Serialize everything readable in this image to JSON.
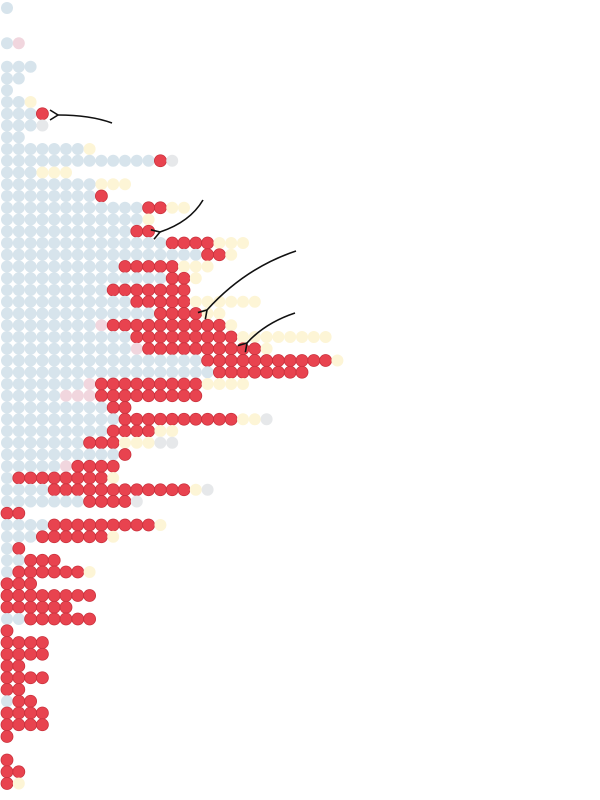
{
  "chart_data": {
    "type": "dotplot",
    "series": [
      {
        "color": "#d7e4ec",
        "values": [
          1,
          0,
          0,
          1,
          0,
          3,
          2,
          1,
          2,
          3,
          3,
          2,
          7,
          13,
          3,
          8,
          8,
          12,
          12,
          11,
          14,
          17,
          10,
          14,
          9,
          11,
          13,
          8,
          11,
          11,
          17,
          18,
          7,
          5,
          9,
          10,
          9,
          7,
          10,
          5,
          1,
          4,
          7,
          0,
          4,
          3,
          1,
          2,
          1,
          0,
          0,
          0,
          2,
          0,
          0,
          0,
          0,
          0,
          0,
          1,
          0,
          0,
          0,
          0,
          0,
          0,
          0
        ]
      },
      {
        "color": "#f1d6de",
        "values": [
          0,
          0,
          0,
          1,
          0,
          0,
          0,
          0,
          0,
          0,
          0,
          0,
          0,
          0,
          0,
          0,
          0,
          0,
          0,
          0,
          0,
          0,
          0,
          0,
          0,
          0,
          0,
          1,
          0,
          1,
          0,
          0,
          1,
          3,
          0,
          0,
          0,
          0,
          0,
          1,
          0,
          0,
          0,
          0,
          0,
          0,
          0,
          0,
          0,
          0,
          0,
          0,
          0,
          0,
          0,
          0,
          0,
          0,
          0,
          0,
          0,
          0,
          0,
          0,
          0,
          0,
          0
        ]
      },
      {
        "color": "#e8434f",
        "values": [
          0,
          0,
          0,
          0,
          0,
          0,
          0,
          0,
          0,
          1,
          0,
          0,
          0,
          1,
          0,
          0,
          1,
          2,
          0,
          2,
          4,
          2,
          5,
          2,
          7,
          5,
          4,
          10,
          9,
          10,
          11,
          8,
          9,
          9,
          2,
          10,
          4,
          3,
          1,
          4,
          8,
          12,
          4,
          2,
          9,
          6,
          1,
          3,
          6,
          3,
          8,
          6,
          6,
          1,
          4,
          4,
          2,
          4,
          2,
          2,
          4,
          4,
          1,
          0,
          1,
          2,
          1
        ]
      },
      {
        "color": "#fdf5d6",
        "values": [
          0,
          0,
          0,
          0,
          0,
          0,
          0,
          0,
          1,
          0,
          0,
          0,
          1,
          0,
          3,
          3,
          0,
          2,
          1,
          0,
          3,
          1,
          3,
          1,
          0,
          6,
          2,
          1,
          8,
          1,
          1,
          0,
          4,
          0,
          0,
          2,
          2,
          3,
          0,
          0,
          1,
          1,
          0,
          0,
          1,
          1,
          0,
          0,
          1,
          0,
          0,
          0,
          0,
          0,
          0,
          0,
          0,
          0,
          0,
          0,
          0,
          0,
          0,
          0,
          0,
          0,
          1
        ]
      },
      {
        "color": "#e6e8ea",
        "values": [
          0,
          0,
          0,
          0,
          0,
          0,
          0,
          0,
          0,
          0,
          1,
          0,
          0,
          1,
          0,
          0,
          0,
          0,
          0,
          0,
          0,
          0,
          0,
          0,
          0,
          0,
          0,
          0,
          0,
          0,
          0,
          0,
          0,
          0,
          0,
          1,
          0,
          2,
          0,
          0,
          0,
          1,
          1,
          0,
          0,
          0,
          0,
          0,
          0,
          0,
          0,
          0,
          0,
          0,
          0,
          0,
          0,
          0,
          0,
          0,
          0,
          0,
          0,
          0,
          0,
          0,
          0
        ]
      }
    ]
  }
}
